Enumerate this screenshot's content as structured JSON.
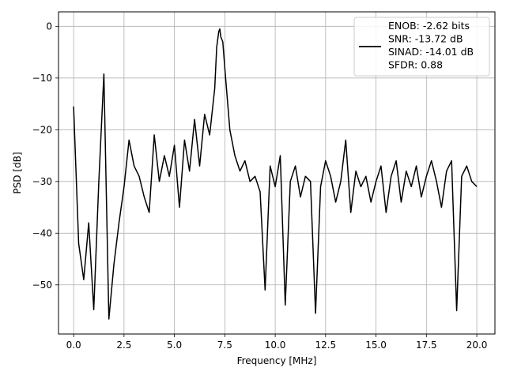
{
  "chart_data": {
    "type": "line",
    "title": "",
    "xlabel": "Frequency [MHz]",
    "ylabel": "PSD [dB]",
    "xlim": [
      -0.75,
      20.9
    ],
    "ylim": [
      -59.5,
      2.8
    ],
    "xticks": [
      0.0,
      2.5,
      5.0,
      7.5,
      10.0,
      12.5,
      15.0,
      17.5,
      20.0
    ],
    "xtick_labels": [
      "0.0",
      "2.5",
      "5.0",
      "7.5",
      "10.0",
      "12.5",
      "15.0",
      "17.5",
      "20.0"
    ],
    "yticks": [
      0,
      -10,
      -20,
      -30,
      -40,
      -50
    ],
    "ytick_labels": [
      "0",
      "−10",
      "−20",
      "−30",
      "−40",
      "−50"
    ],
    "grid": true,
    "legend_position": "top-right",
    "legend": [
      "ENOB: -2.62 bits",
      "SNR: -13.72 dB",
      "SINAD: -14.01 dB",
      "SFDR: 0.88"
    ],
    "series": [
      {
        "color": "#000000",
        "x": [
          0,
          0.25,
          0.5,
          0.75,
          1.0,
          1.25,
          1.5,
          1.75,
          2.0,
          2.25,
          2.5,
          2.75,
          3.0,
          3.25,
          3.5,
          3.75,
          4.0,
          4.25,
          4.5,
          4.75,
          5.0,
          5.25,
          5.5,
          5.75,
          6.0,
          6.25,
          6.5,
          6.75,
          7.0,
          7.1,
          7.2,
          7.25,
          7.3,
          7.4,
          7.5,
          7.75,
          8.0,
          8.25,
          8.5,
          8.75,
          9.0,
          9.25,
          9.5,
          9.75,
          10.0,
          10.25,
          10.5,
          10.75,
          11.0,
          11.25,
          11.5,
          11.75,
          12.0,
          12.25,
          12.5,
          12.75,
          13.0,
          13.25,
          13.5,
          13.75,
          14.0,
          14.25,
          14.5,
          14.75,
          15.0,
          15.25,
          15.5,
          15.75,
          16.0,
          16.25,
          16.5,
          16.75,
          17.0,
          17.25,
          17.5,
          17.75,
          18.0,
          18.25,
          18.5,
          18.75,
          19.0,
          19.25,
          19.5,
          19.75,
          20.0
        ],
        "values": [
          -15.5,
          -42,
          -49,
          -38,
          -54.8,
          -30,
          -9.2,
          -56.6,
          -46,
          -38,
          -31,
          -22,
          -27,
          -29,
          -33,
          -36,
          -21,
          -30,
          -25,
          -29,
          -23,
          -35,
          -22,
          -28,
          -18,
          -27,
          -17,
          -21,
          -12,
          -4,
          -1,
          -0.5,
          -2,
          -3,
          -8,
          -20,
          -25,
          -28,
          -26,
          -30,
          -29,
          -32,
          -51,
          -27,
          -31,
          -25,
          -53.9,
          -30,
          -27,
          -33,
          -29,
          -30,
          -55.5,
          -31,
          -26,
          -29,
          -34,
          -30,
          -22,
          -36,
          -28,
          -31,
          -29,
          -34,
          -30,
          -27,
          -36,
          -29,
          -26,
          -34,
          -28,
          -31,
          -27,
          -33,
          -29,
          -26,
          -30,
          -35,
          -28,
          -26,
          -55,
          -29,
          -27,
          -30,
          -31
        ]
      }
    ]
  }
}
